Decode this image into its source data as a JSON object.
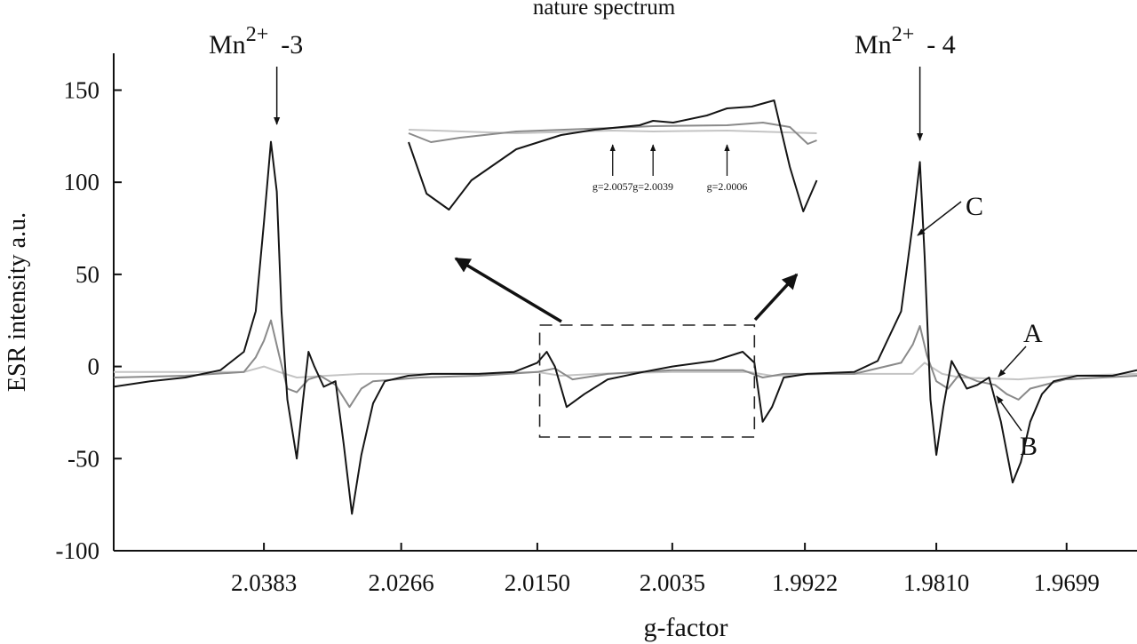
{
  "chart_data": {
    "type": "line",
    "title": "",
    "xlabel": "g-factor",
    "ylabel": "ESR intensity  a.u.",
    "x_tick_labels": [
      "2.0383",
      "2.0266",
      "2.0150",
      "2.0035",
      "1.9922",
      "1.9810",
      "1.9699"
    ],
    "x_tick_values": [
      2.0383,
      2.0266,
      2.015,
      2.0035,
      1.9922,
      1.981,
      1.9699
    ],
    "xlim": [
      2.0511,
      1.9639
    ],
    "y_tick_labels": [
      "150",
      "100",
      "50",
      "0",
      "-50",
      "-100"
    ],
    "y_tick_values": [
      150,
      100,
      50,
      0,
      -50,
      -100
    ],
    "ylim": [
      -100,
      170
    ],
    "grid": false,
    "colors": {
      "A": "#c4c4c4",
      "B": "#8a8a8a",
      "C": "#151515"
    },
    "series": [
      {
        "name": "C",
        "x": [
          2.0511,
          2.048,
          2.045,
          2.042,
          2.04,
          2.039,
          2.0383,
          2.0377,
          2.0372,
          2.0368,
          2.0363,
          2.0355,
          2.035,
          2.0345,
          2.034,
          2.0332,
          2.0322,
          2.0315,
          2.0308,
          2.03,
          2.029,
          2.028,
          2.026,
          2.024,
          2.02,
          2.017,
          2.015,
          2.0142,
          2.0135,
          2.0125,
          2.011,
          2.009,
          2.006,
          2.0035,
          2.0,
          1.9975,
          1.9965,
          1.9958,
          1.995,
          1.994,
          1.992,
          1.988,
          1.986,
          1.984,
          1.983,
          1.9824,
          1.982,
          1.9815,
          1.981,
          1.9804,
          1.9797,
          1.979,
          1.9784,
          1.9775,
          1.9765,
          1.9755,
          1.9745,
          1.9738,
          1.973,
          1.972,
          1.971,
          1.969,
          1.966,
          1.9639
        ],
        "y": [
          -11,
          -8,
          -6,
          -2,
          8,
          30,
          78,
          122,
          95,
          30,
          -18,
          -50,
          -20,
          8,
          0,
          -11,
          -8,
          -42,
          -80,
          -48,
          -20,
          -8,
          -5,
          -4,
          -4,
          -3,
          2,
          8,
          0,
          -22,
          -15,
          -7,
          -3,
          0,
          3,
          8,
          2,
          -30,
          -22,
          -6,
          -4,
          -3,
          3,
          30,
          78,
          111,
          60,
          -18,
          -48,
          -22,
          3,
          -5,
          -12,
          -10,
          -6,
          -30,
          -63,
          -52,
          -30,
          -15,
          -8,
          -5,
          -5,
          -2
        ]
      },
      {
        "name": "B",
        "x": [
          2.0511,
          2.045,
          2.04,
          2.039,
          2.0383,
          2.0377,
          2.037,
          2.0363,
          2.0355,
          2.0345,
          2.0335,
          2.0322,
          2.031,
          2.03,
          2.029,
          2.025,
          2.02,
          2.015,
          2.0135,
          2.012,
          2.009,
          2.0035,
          1.9975,
          1.9958,
          1.994,
          1.988,
          1.984,
          1.983,
          1.9824,
          1.9818,
          1.981,
          1.98,
          1.979,
          1.9775,
          1.976,
          1.975,
          1.974,
          1.973,
          1.97,
          1.9639
        ],
        "y": [
          -6,
          -5,
          -3,
          5,
          14,
          25,
          6,
          -12,
          -14,
          -7,
          -5,
          -10,
          -22,
          -12,
          -8,
          -6,
          -5,
          -3,
          -1,
          -7,
          -4,
          -2,
          -2,
          -6,
          -4,
          -4,
          2,
          12,
          22,
          6,
          -8,
          -12,
          -4,
          -8,
          -10,
          -15,
          -18,
          -12,
          -7,
          -5
        ]
      },
      {
        "name": "A",
        "x": [
          2.0511,
          2.04,
          2.0383,
          2.037,
          2.0355,
          2.033,
          2.03,
          2.02,
          2.015,
          2.013,
          2.01,
          2.0035,
          1.997,
          1.995,
          1.99,
          1.983,
          1.982,
          1.9805,
          1.979,
          1.974,
          1.97,
          1.9639
        ],
        "y": [
          -3,
          -3,
          0,
          -3,
          -6,
          -5,
          -4,
          -4,
          -3,
          -5,
          -4,
          -3,
          -3,
          -5,
          -4,
          -4,
          2,
          -4,
          -6,
          -7,
          -5,
          -4
        ]
      }
    ],
    "inset": {
      "title": "nature spectrum",
      "labels": [
        "g=2.0057",
        "g=2.0039",
        "g=2.0006"
      ],
      "label_g": [
        2.0057,
        2.0039,
        2.0006
      ],
      "window_g": [
        2.0148,
        1.9965
      ],
      "series": [
        {
          "name": "C",
          "g": [
            2.0148,
            2.014,
            2.013,
            2.012,
            2.01,
            2.008,
            2.0065,
            2.0057,
            2.0045,
            2.0039,
            2.003,
            2.0015,
            2.0006,
            1.9995,
            1.9985,
            1.9978,
            1.9972,
            1.9966
          ],
          "v": [
            -12,
            -70,
            -88,
            -55,
            -20,
            -4,
            2,
            4,
            7,
            12,
            10,
            18,
            26,
            28,
            35,
            -40,
            -90,
            -55
          ]
        },
        {
          "name": "B",
          "g": [
            2.0148,
            2.0138,
            2.0125,
            2.01,
            2.0057,
            2.0039,
            2.0006,
            1.999,
            1.9978,
            1.997,
            1.9966
          ],
          "v": [
            -2,
            -12,
            -7,
            0,
            4,
            6,
            7,
            10,
            5,
            -14,
            -10
          ]
        },
        {
          "name": "A",
          "g": [
            2.0148,
            2.01,
            2.0057,
            2.0039,
            2.0006,
            1.998,
            1.9966
          ],
          "v": [
            2,
            -2,
            1,
            0,
            1,
            -1,
            -2
          ]
        }
      ]
    },
    "annotations": [
      {
        "id": "mn3",
        "base": "Mn",
        "sup": "2+",
        "suffix": "-3",
        "at_g": 2.0372
      },
      {
        "id": "mn4",
        "base": "Mn",
        "sup": "2+",
        "suffix": "- 4",
        "at_g": 1.9824
      },
      {
        "id": "C",
        "text": "C"
      },
      {
        "id": "A",
        "text": "A"
      },
      {
        "id": "B",
        "text": "B"
      }
    ]
  }
}
